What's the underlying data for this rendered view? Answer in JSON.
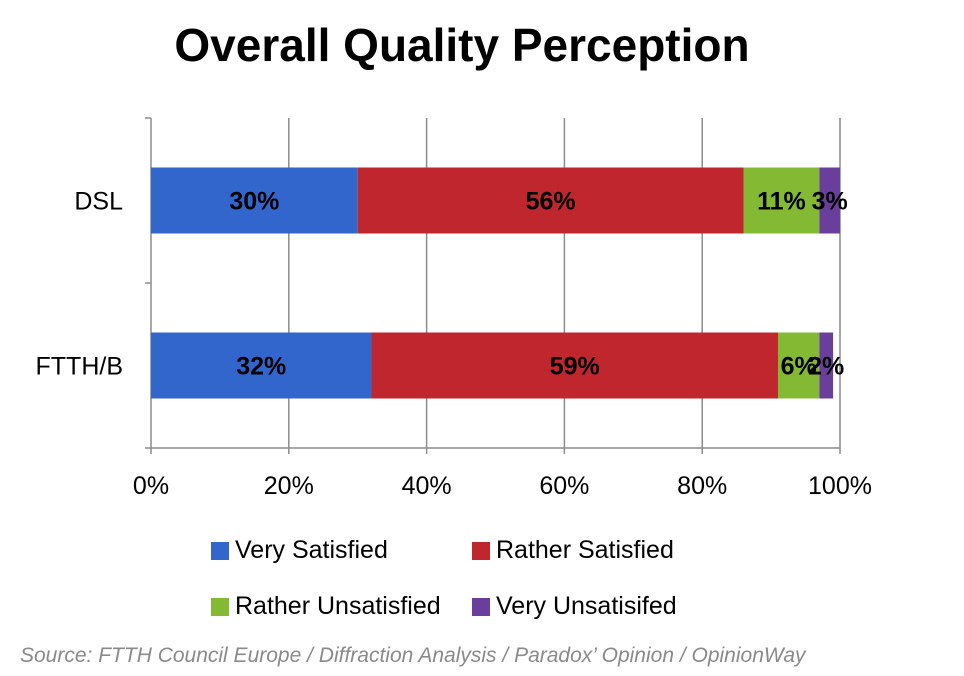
{
  "chart_data": {
    "type": "bar",
    "orientation": "horizontal",
    "stacked": true,
    "title": "Overall Quality Perception",
    "categories": [
      "DSL",
      "FTTH/B"
    ],
    "series": [
      {
        "name": "Very Satisfied",
        "values": [
          30,
          32
        ],
        "color": "#3366cc",
        "labels": [
          "30%",
          "32%"
        ]
      },
      {
        "name": "Rather Satisfied",
        "values": [
          56,
          59
        ],
        "color": "#c0262d",
        "labels": [
          "56%",
          "59%"
        ]
      },
      {
        "name": "Rather Unsatisfied",
        "values": [
          11,
          6
        ],
        "color": "#84b934",
        "labels": [
          "11%",
          "6%"
        ]
      },
      {
        "name": "Very Unsatisifed",
        "values": [
          3,
          2
        ],
        "color": "#6a3f9c",
        "labels": [
          "3%",
          "2%"
        ]
      }
    ],
    "xlim": [
      0,
      100
    ],
    "x_ticks": [
      "0%",
      "20%",
      "40%",
      "60%",
      "80%",
      "100%"
    ],
    "grid": "vertical",
    "legend_position": "bottom"
  },
  "source": "Source: FTTH Council Europe / Diffraction Analysis / Paradox’ Opinion / OpinionWay"
}
